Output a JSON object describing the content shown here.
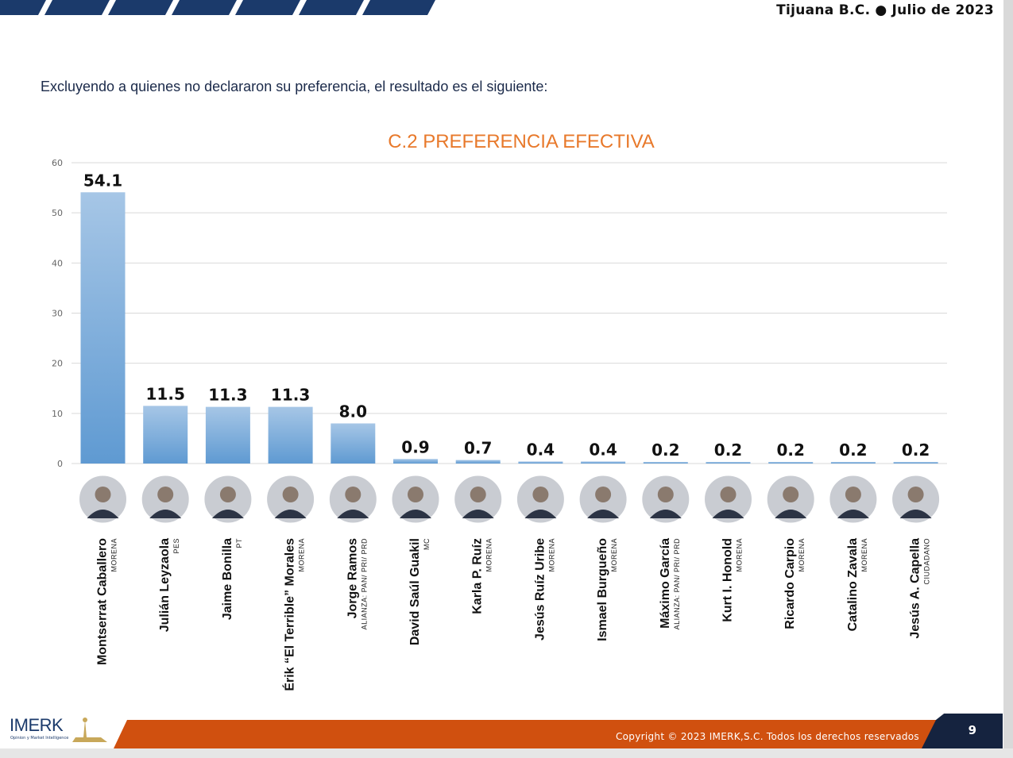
{
  "header": {
    "location": "Tijuana B.C.",
    "date": "Julio de 2023"
  },
  "intro": "Excluyendo a quienes no declararon su preferencia, el resultado es el siguiente:",
  "footer": {
    "copyright": "Copyright © 2023 IMERK,S.C. Todos los derechos reservados",
    "page": "9",
    "logo": "IMERK",
    "logo_tagline": "Opinion y Market Intelligence"
  },
  "colors": {
    "bar_top": "#a6c6e6",
    "bar_bottom": "#5f9ad2",
    "title": "#e8792b",
    "navy": "#15233f",
    "orange_bar": "#d0500f"
  },
  "chart_data": {
    "type": "bar",
    "title": "C.2 PREFERENCIA EFECTIVA",
    "ylim": [
      0,
      60
    ],
    "yticks": [
      0,
      10,
      20,
      30,
      40,
      50,
      60
    ],
    "grid": true,
    "categories": [
      "Montserrat Caballero",
      "Julián Leyzaola",
      "Jaime Bonilla",
      "Érik “El Terrible” Morales",
      "Jorge Ramos",
      "David Saúl Guakil",
      "Karla P. Ruíz",
      "Jesús Ruíz Uribe",
      "Ismael Burgueño",
      "Máximo García",
      "Kurt I. Honold",
      "Ricardo Carpio",
      "Catalino Zavala",
      "Jesús A. Capella"
    ],
    "parties": [
      "MORENA",
      "PES",
      "PT",
      "MORENA",
      "ALIANZA: PAN/ PRI/ PRD",
      "MC",
      "MORENA",
      "MORENA",
      "MORENA",
      "ALIANZA: PAN/ PRI/ PRD",
      "MORENA",
      "MORENA",
      "MORENA",
      "CIUDADANO"
    ],
    "values": [
      54.1,
      11.5,
      11.3,
      11.3,
      8.0,
      0.9,
      0.7,
      0.4,
      0.4,
      0.2,
      0.2,
      0.2,
      0.2,
      0.2
    ],
    "value_labels": [
      "54.1",
      "11.5",
      "11.3",
      "11.3",
      "8.0",
      "0.9",
      "0.7",
      "0.4",
      "0.4",
      "0.2",
      "0.2",
      "0.2",
      "0.2",
      "0.2"
    ]
  }
}
